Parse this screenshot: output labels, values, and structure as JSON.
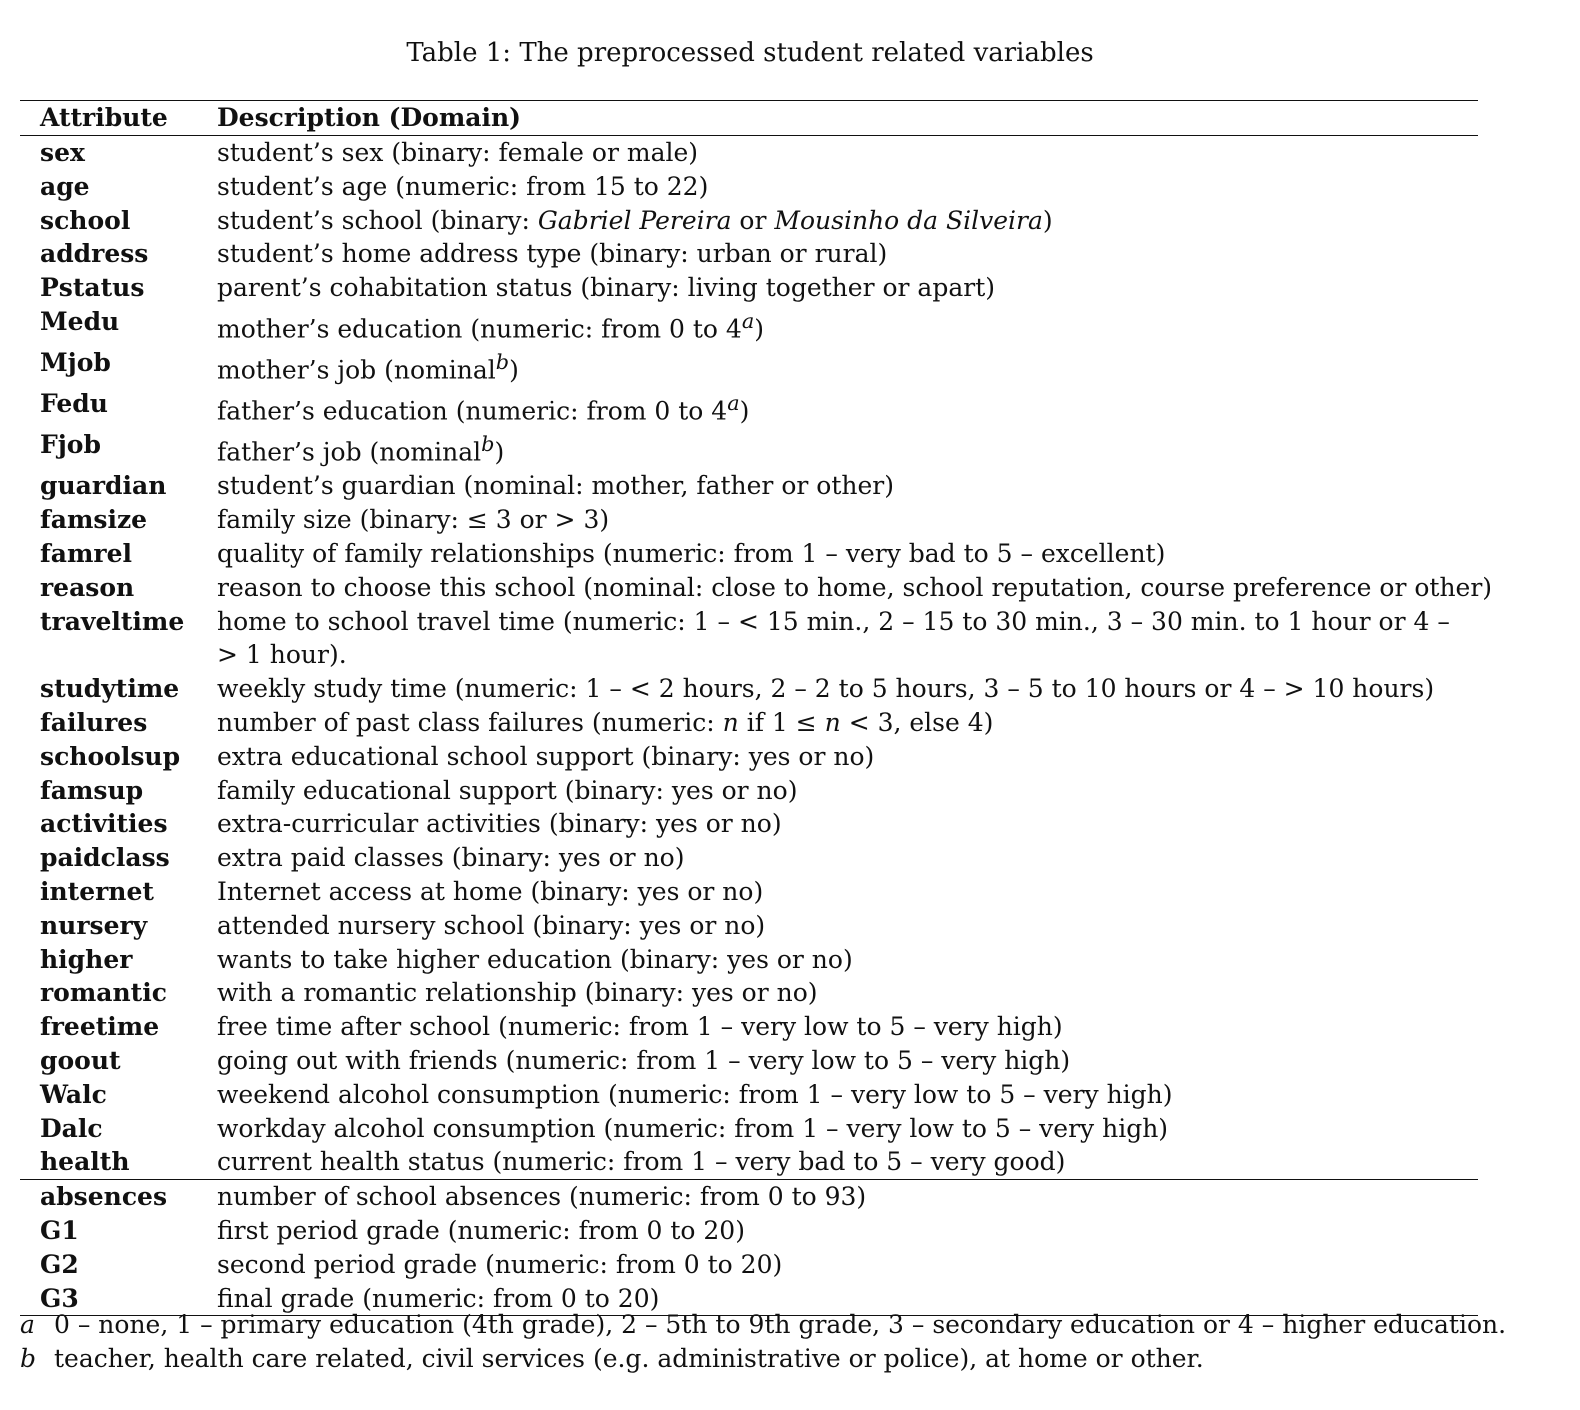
{
  "caption": "Table 1: The preprocessed student related variables",
  "header": {
    "attribute": "Attribute",
    "description": "Description (Domain)"
  },
  "rows_block1": [
    {
      "attr": "sex",
      "desc": "student’s sex (binary: female or male)"
    },
    {
      "attr": "age",
      "desc": "student’s age (numeric: from 15 to 22)"
    },
    {
      "attr": "school",
      "desc": "student’s school (binary: <i>Gabriel Pereira</i> or <i>Mousinho da Silveira</i>)"
    },
    {
      "attr": "address",
      "desc": "student’s home address type (binary: urban or rural)"
    },
    {
      "attr": "Pstatus",
      "desc": "parent’s cohabitation status (binary: living together or apart)"
    },
    {
      "attr": "Medu",
      "desc": "mother’s education (numeric: from 0 to 4<sup><i>a</i></sup>)"
    },
    {
      "attr": "Mjob",
      "desc": "mother’s job (nominal<sup><i>b</i></sup>)"
    },
    {
      "attr": "Fedu",
      "desc": "father’s education (numeric: from 0 to 4<sup><i>a</i></sup>)"
    },
    {
      "attr": "Fjob",
      "desc": "father’s job (nominal<sup><i>b</i></sup>)"
    },
    {
      "attr": "guardian",
      "desc": "student’s guardian (nominal: mother, father or other)"
    },
    {
      "attr": "famsize",
      "desc": "family size (binary: ≤ 3 or &gt; 3)"
    },
    {
      "attr": "famrel",
      "desc": "quality of family relationships (numeric: from 1 – very bad to 5 – excellent)"
    },
    {
      "attr": "reason",
      "desc": "reason to choose this school (nominal: close to home, school reputation, course preference or other)"
    },
    {
      "attr": "traveltime",
      "desc": "home to school travel time (numeric: 1 – &lt; 15 min., 2 – 15 to 30 min., 3 – 30 min. to 1 hour or 4 – &gt; 1 hour).",
      "wrap": true
    },
    {
      "attr": "studytime",
      "desc": "weekly study time (numeric: 1 – &lt; 2 hours, 2 – 2 to 5 hours, 3 – 5 to 10 hours or 4 – &gt; 10 hours)"
    },
    {
      "attr": "failures",
      "desc": "number of past class failures (numeric: <i>n</i> if 1 ≤ <i>n</i> &lt; 3, else 4)"
    },
    {
      "attr": "schoolsup",
      "desc": "extra educational school support (binary: yes or no)"
    },
    {
      "attr": "famsup",
      "desc": "family educational support (binary: yes or no)"
    },
    {
      "attr": "activities",
      "desc": "extra-curricular activities (binary: yes or no)"
    },
    {
      "attr": "paidclass",
      "desc": "extra paid classes (binary: yes or no)"
    },
    {
      "attr": "internet",
      "desc": "Internet access at home (binary: yes or no)"
    },
    {
      "attr": "nursery",
      "desc": "attended nursery school (binary: yes or no)"
    },
    {
      "attr": "higher",
      "desc": "wants to take higher education (binary: yes or no)"
    },
    {
      "attr": "romantic",
      "desc": "with a romantic relationship (binary: yes or no)"
    },
    {
      "attr": "freetime",
      "desc": "free time after school (numeric: from 1 – very low to 5 – very high)"
    },
    {
      "attr": "goout",
      "desc": "going out with friends (numeric: from 1 – very low to 5 – very high)"
    },
    {
      "attr": "Walc",
      "desc": "weekend alcohol consumption (numeric: from 1 – very low to 5 – very high)"
    },
    {
      "attr": "Dalc",
      "desc": "workday alcohol consumption (numeric: from 1 – very low to 5 – very high)"
    },
    {
      "attr": "health",
      "desc": "current health status (numeric: from 1 – very bad to 5 – very good)"
    }
  ],
  "rows_block2": [
    {
      "attr": "absences",
      "desc": "number of school absences (numeric: from 0 to 93)"
    },
    {
      "attr": "G1",
      "desc": "first period grade (numeric: from 0 to 20)"
    },
    {
      "attr": "G2",
      "desc": "second period grade (numeric: from 0 to 20)"
    },
    {
      "attr": "G3",
      "desc": "final grade (numeric: from 0 to 20)"
    }
  ],
  "footnotes": [
    {
      "mark": "a",
      "text": "0 – none, 1 – primary education (4th grade), 2 – 5th to 9th grade, 3 – secondary education or 4 – higher education."
    },
    {
      "mark": "b",
      "text": "teacher, health care related, civil services (e.g. administrative or police), at home or other."
    }
  ]
}
